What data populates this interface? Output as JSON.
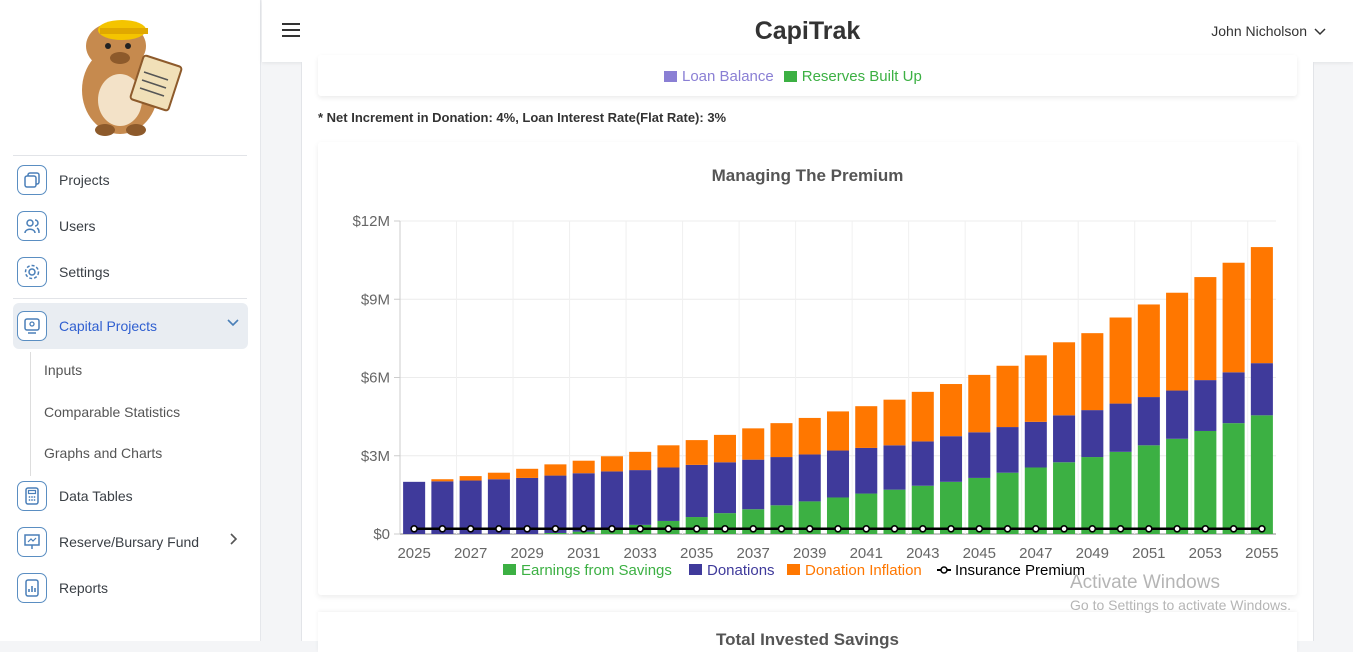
{
  "app": {
    "title": "CapiTrak",
    "user_name": "John Nicholson"
  },
  "sidebar": {
    "items": [
      {
        "label": "Projects",
        "icon": "copy-icon"
      },
      {
        "label": "Users",
        "icon": "users-icon"
      },
      {
        "label": "Settings",
        "icon": "gear-icon"
      },
      {
        "label": "Capital Projects",
        "icon": "monitor-user-icon"
      },
      {
        "label": "Data Tables",
        "icon": "calculator-icon"
      },
      {
        "label": "Reserve/Bursary Fund",
        "icon": "presentation-icon"
      },
      {
        "label": "Reports",
        "icon": "report-icon"
      }
    ],
    "sub_items": [
      {
        "label": "Inputs"
      },
      {
        "label": "Comparable Statistics"
      },
      {
        "label": "Graphs and Charts"
      }
    ]
  },
  "top_legend": [
    {
      "label": "Loan Balance",
      "color": "#8a7fd4"
    },
    {
      "label": "Reserves Built Up",
      "color": "#3cb043"
    }
  ],
  "note": "* Net Increment in Donation: 4%, Loan Interest Rate(Flat Rate): 3%",
  "chart_data": {
    "type": "bar",
    "title": "Managing The Premium",
    "stacked": true,
    "categories": [
      "2025",
      "2026",
      "2027",
      "2028",
      "2029",
      "2030",
      "2031",
      "2032",
      "2033",
      "2034",
      "2035",
      "2036",
      "2037",
      "2038",
      "2039",
      "2040",
      "2041",
      "2042",
      "2043",
      "2044",
      "2045",
      "2046",
      "2047",
      "2048",
      "2049",
      "2050",
      "2051",
      "2052",
      "2053",
      "2054",
      "2055"
    ],
    "x_tick_labels": [
      "2025",
      "2027",
      "2029",
      "2031",
      "2033",
      "2035",
      "2037",
      "2039",
      "2041",
      "2043",
      "2045",
      "2047",
      "2049",
      "2051",
      "2053",
      "2055"
    ],
    "y_tick_labels": [
      "$0",
      "$3M",
      "$6M",
      "$9M",
      "$12M"
    ],
    "ylim": [
      0,
      12000000
    ],
    "grid": true,
    "legend_position": "bottom",
    "series": [
      {
        "name": "Earnings from Savings",
        "color": "#3cb043",
        "values": [
          0,
          0,
          0,
          0,
          0,
          40000,
          90000,
          200000,
          350000,
          500000,
          650000,
          800000,
          950000,
          1100000,
          1250000,
          1400000,
          1550000,
          1700000,
          1850000,
          2000000,
          2150000,
          2350000,
          2550000,
          2750000,
          2950000,
          3150000,
          3400000,
          3650000,
          3950000,
          4250000,
          4550000
        ]
      },
      {
        "name": "Donations",
        "color": "#3f3a9b",
        "values": [
          2000000,
          2020000,
          2050000,
          2100000,
          2150000,
          2200000,
          2240000,
          2200000,
          2100000,
          2050000,
          2000000,
          1950000,
          1900000,
          1850000,
          1800000,
          1800000,
          1750000,
          1700000,
          1700000,
          1750000,
          1750000,
          1750000,
          1750000,
          1800000,
          1800000,
          1850000,
          1850000,
          1850000,
          1950000,
          1950000,
          2000000
        ]
      },
      {
        "name": "Donation Inflation",
        "color": "#ff7700",
        "values": [
          0,
          80000,
          170000,
          250000,
          350000,
          430000,
          480000,
          580000,
          700000,
          850000,
          950000,
          1050000,
          1200000,
          1300000,
          1400000,
          1500000,
          1600000,
          1750000,
          1900000,
          2000000,
          2200000,
          2350000,
          2550000,
          2800000,
          2950000,
          3300000,
          3550000,
          3750000,
          3950000,
          4200000,
          4450000
        ]
      },
      {
        "name": "Insurance Premium",
        "color": "#000000",
        "kind": "line",
        "values": [
          200000,
          200000,
          200000,
          200000,
          200000,
          200000,
          200000,
          200000,
          200000,
          200000,
          200000,
          200000,
          200000,
          200000,
          200000,
          200000,
          200000,
          200000,
          200000,
          200000,
          200000,
          200000,
          200000,
          200000,
          200000,
          200000,
          200000,
          200000,
          200000,
          200000,
          200000
        ]
      }
    ]
  },
  "bottom_card": {
    "title": "Total Invested Savings"
  },
  "watermark": {
    "line1": "Activate Windows",
    "line2": "Go to Settings to activate Windows."
  }
}
